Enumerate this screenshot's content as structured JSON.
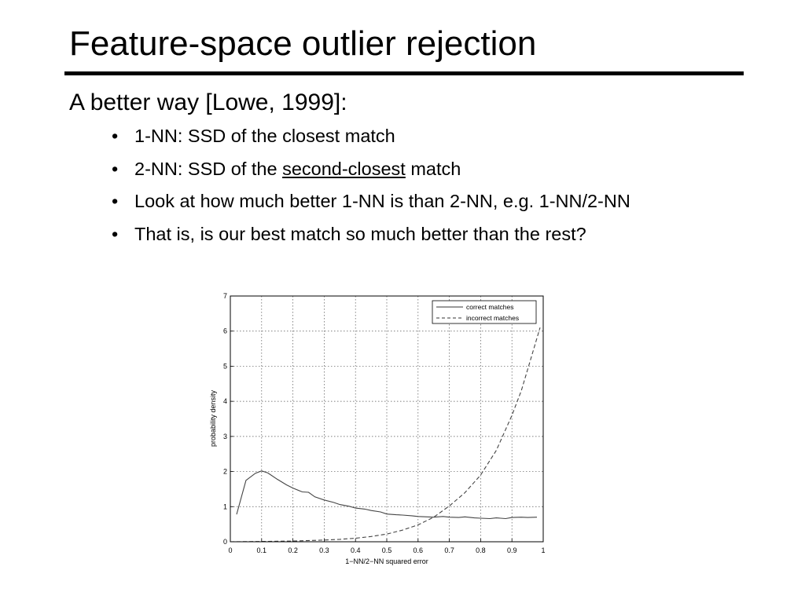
{
  "slide": {
    "title": "Feature-space outlier rejection",
    "subtitle": "A better way [Lowe, 1999]:",
    "bullets": [
      {
        "pre": "1-NN: SSD of the closest match",
        "emph": "",
        "post": ""
      },
      {
        "pre": "2-NN: SSD of the ",
        "emph": "second-closest",
        "post": " match"
      },
      {
        "pre": "Look at how much better 1-NN is than 2-NN, e.g. 1-NN/2-NN",
        "emph": "",
        "post": ""
      },
      {
        "pre": "That is, is our best match so much better than the rest?",
        "emph": "",
        "post": ""
      }
    ],
    "bullet_glyph": "•"
  },
  "chart_data": {
    "type": "line",
    "title": "",
    "xlabel": "1−NN/2−NN squared error",
    "ylabel": "probability density",
    "xlim": [
      0,
      1
    ],
    "ylim": [
      0,
      7
    ],
    "xticks": [
      0,
      0.1,
      0.2,
      0.3,
      0.4,
      0.5,
      0.6,
      0.7,
      0.8,
      0.9,
      1
    ],
    "xtick_labels": [
      "0",
      "0.1",
      "0.2",
      "0.3",
      "0.4",
      "0.5",
      "0.6",
      "0.7",
      "0.8",
      "0.9",
      "1"
    ],
    "yticks": [
      0,
      1,
      2,
      3,
      4,
      5,
      6,
      7
    ],
    "ytick_labels": [
      "0",
      "1",
      "2",
      "3",
      "4",
      "5",
      "6",
      "7"
    ],
    "grid": true,
    "legend_position": "top-right",
    "series": [
      {
        "name": "correct matches",
        "style": "solid",
        "x": [
          0.02,
          0.05,
          0.08,
          0.1,
          0.12,
          0.15,
          0.18,
          0.2,
          0.23,
          0.25,
          0.27,
          0.3,
          0.33,
          0.35,
          0.38,
          0.4,
          0.43,
          0.45,
          0.48,
          0.5,
          0.53,
          0.55,
          0.58,
          0.6,
          0.63,
          0.65,
          0.68,
          0.7,
          0.73,
          0.75,
          0.78,
          0.8,
          0.83,
          0.85,
          0.88,
          0.9,
          0.93,
          0.95,
          0.98
        ],
        "values": [
          0.78,
          1.75,
          1.95,
          2.02,
          1.96,
          1.78,
          1.62,
          1.53,
          1.42,
          1.41,
          1.28,
          1.19,
          1.12,
          1.06,
          1.01,
          0.96,
          0.93,
          0.89,
          0.85,
          0.79,
          0.77,
          0.76,
          0.74,
          0.72,
          0.71,
          0.7,
          0.72,
          0.7,
          0.69,
          0.71,
          0.68,
          0.67,
          0.66,
          0.68,
          0.66,
          0.69,
          0.7,
          0.69,
          0.7
        ]
      },
      {
        "name": "incorrect matches",
        "style": "dashed",
        "x": [
          0.0,
          0.1,
          0.2,
          0.3,
          0.35,
          0.4,
          0.45,
          0.5,
          0.55,
          0.6,
          0.65,
          0.7,
          0.75,
          0.8,
          0.85,
          0.9,
          0.93,
          0.95,
          0.98,
          0.99
        ],
        "values": [
          0.0,
          0.01,
          0.02,
          0.05,
          0.07,
          0.1,
          0.15,
          0.22,
          0.33,
          0.48,
          0.7,
          1.02,
          1.4,
          1.9,
          2.6,
          3.6,
          4.3,
          4.9,
          5.8,
          6.1
        ]
      }
    ]
  }
}
